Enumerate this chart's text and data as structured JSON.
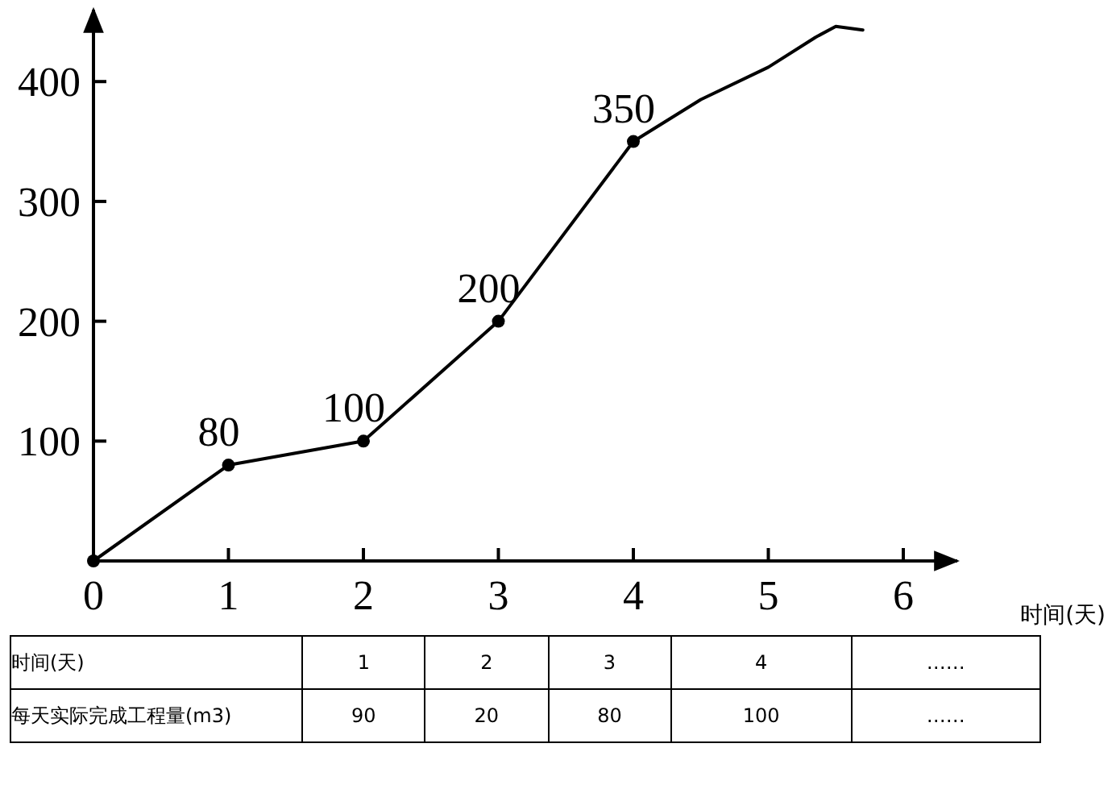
{
  "chart_data": {
    "type": "line",
    "xlabel": "时间(天)",
    "xlim": [
      0,
      6.4
    ],
    "ylim": [
      0,
      460
    ],
    "xticks": [
      0,
      1,
      2,
      3,
      4,
      5,
      6
    ],
    "yticks": [
      100,
      200,
      300,
      400
    ],
    "grid": false,
    "line_style": "solid",
    "series": [
      {
        "x": [
          0,
          1,
          2,
          3,
          4
        ],
        "values": [
          0,
          80,
          100,
          200,
          350
        ],
        "value_labels": [
          null,
          "80",
          "100",
          "200",
          "350"
        ],
        "marker": "circle",
        "color": "#000000"
      },
      {
        "x": [
          4,
          4.5,
          5,
          5.35,
          5.5,
          5.7
        ],
        "values": [
          350,
          385,
          412,
          437,
          446,
          443
        ],
        "marker": "none",
        "color": "#000000"
      }
    ],
    "annotations": [
      "时间(天)",
      "1",
      "2",
      "3",
      "4",
      "……",
      "每天实际完成工程量(m3)",
      "90",
      "20",
      "80",
      "100",
      "……"
    ]
  }
}
